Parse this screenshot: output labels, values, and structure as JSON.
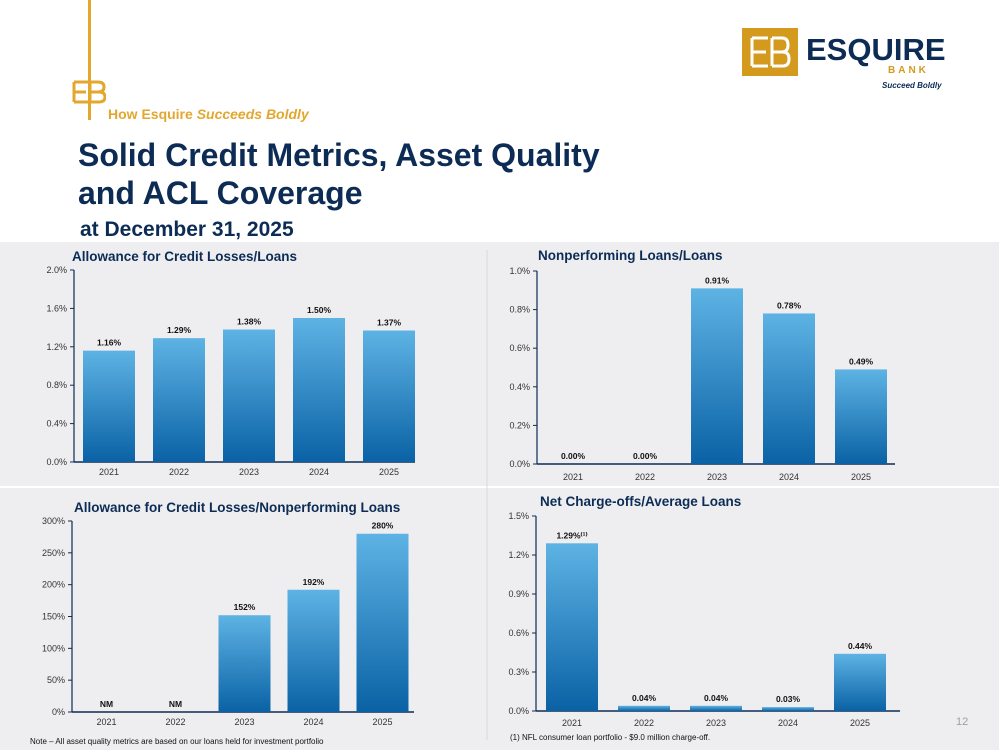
{
  "header": {
    "kicker_plain": "How Esquire ",
    "kicker_italic": "Succeeds Boldly",
    "title_line1": "Solid Credit Metrics, Asset Quality",
    "title_line2": "and ACL Coverage",
    "subtitle": "at December 31, 2025"
  },
  "logo": {
    "word": "ESQUIRE",
    "bank": "BANK",
    "tagline": "Succeed Boldly"
  },
  "colors": {
    "navy": "#0d2c55",
    "gold": "#e3a72f",
    "bar_top": "#5eb3e4",
    "bar_bottom": "#0a62a5",
    "panel_bg": "#eeeef0"
  },
  "chart_data": [
    {
      "type": "bar",
      "title": "Allowance for Credit Losses/Loans",
      "categories": [
        "2021",
        "2022",
        "2023",
        "2024",
        "2025"
      ],
      "values": [
        1.16,
        1.29,
        1.38,
        1.5,
        1.37
      ],
      "labels": [
        "1.16%",
        "1.29%",
        "1.38%",
        "1.50%",
        "1.37%"
      ],
      "ylim": [
        0,
        2.0
      ],
      "yticks": [
        "0.0%",
        "0.4%",
        "0.8%",
        "1.2%",
        "1.6%",
        "2.0%"
      ]
    },
    {
      "type": "bar",
      "title": "Nonperforming Loans/Loans",
      "categories": [
        "2021",
        "2022",
        "2023",
        "2024",
        "2025"
      ],
      "values": [
        0.0,
        0.0,
        0.91,
        0.78,
        0.49
      ],
      "labels": [
        "0.00%",
        "0.00%",
        "0.91%",
        "0.78%",
        "0.49%"
      ],
      "ylim": [
        0,
        1.0
      ],
      "yticks": [
        "0.0%",
        "0.2%",
        "0.4%",
        "0.6%",
        "0.8%",
        "1.0%"
      ]
    },
    {
      "type": "bar",
      "title": "Allowance for Credit Losses/Nonperforming Loans",
      "categories": [
        "2021",
        "2022",
        "2023",
        "2024",
        "2025"
      ],
      "values": [
        0,
        0,
        152,
        192,
        280
      ],
      "labels": [
        "NM",
        "NM",
        "152%",
        "192%",
        "280%"
      ],
      "ylim": [
        0,
        300
      ],
      "yticks": [
        "0%",
        "50%",
        "100%",
        "150%",
        "200%",
        "250%",
        "300%"
      ]
    },
    {
      "type": "bar",
      "title": "Net Charge-offs/Average Loans",
      "categories": [
        "2021",
        "2022",
        "2023",
        "2024",
        "2025"
      ],
      "values": [
        1.29,
        0.04,
        0.04,
        0.03,
        0.44
      ],
      "labels": [
        "1.29%⁽¹⁾",
        "0.04%",
        "0.04%",
        "0.03%",
        "0.44%"
      ],
      "ylim": [
        0,
        1.5
      ],
      "yticks": [
        "0.0%",
        "0.3%",
        "0.6%",
        "0.9%",
        "1.2%",
        "1.5%"
      ]
    }
  ],
  "footnotes": {
    "note_left": "Note – All asset quality metrics are based on our loans held for investment portfolio",
    "note_right": "(1) NFL consumer loan portfolio - $9.0 million charge-off."
  },
  "page_number": "12"
}
